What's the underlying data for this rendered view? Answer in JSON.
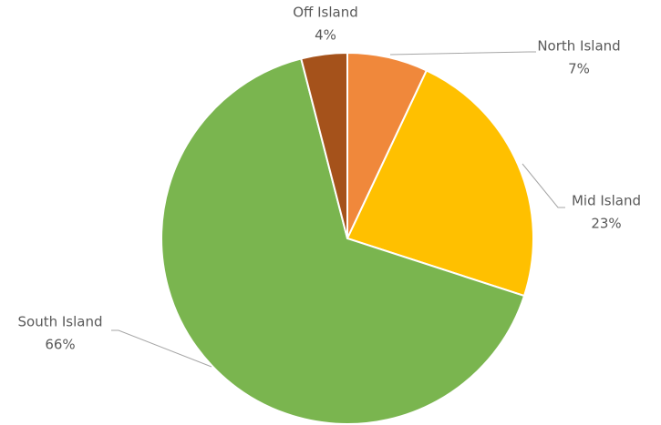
{
  "chart_data": {
    "type": "pie",
    "categories": [
      "North Island",
      "Mid Island",
      "South Island",
      "Off Island"
    ],
    "values": [
      7,
      23,
      66,
      4
    ],
    "value_labels": [
      "7%",
      "23%",
      "66%",
      "4%"
    ],
    "colors": [
      "#f0883b",
      "#ffc000",
      "#7ab54f",
      "#a5521b"
    ]
  }
}
